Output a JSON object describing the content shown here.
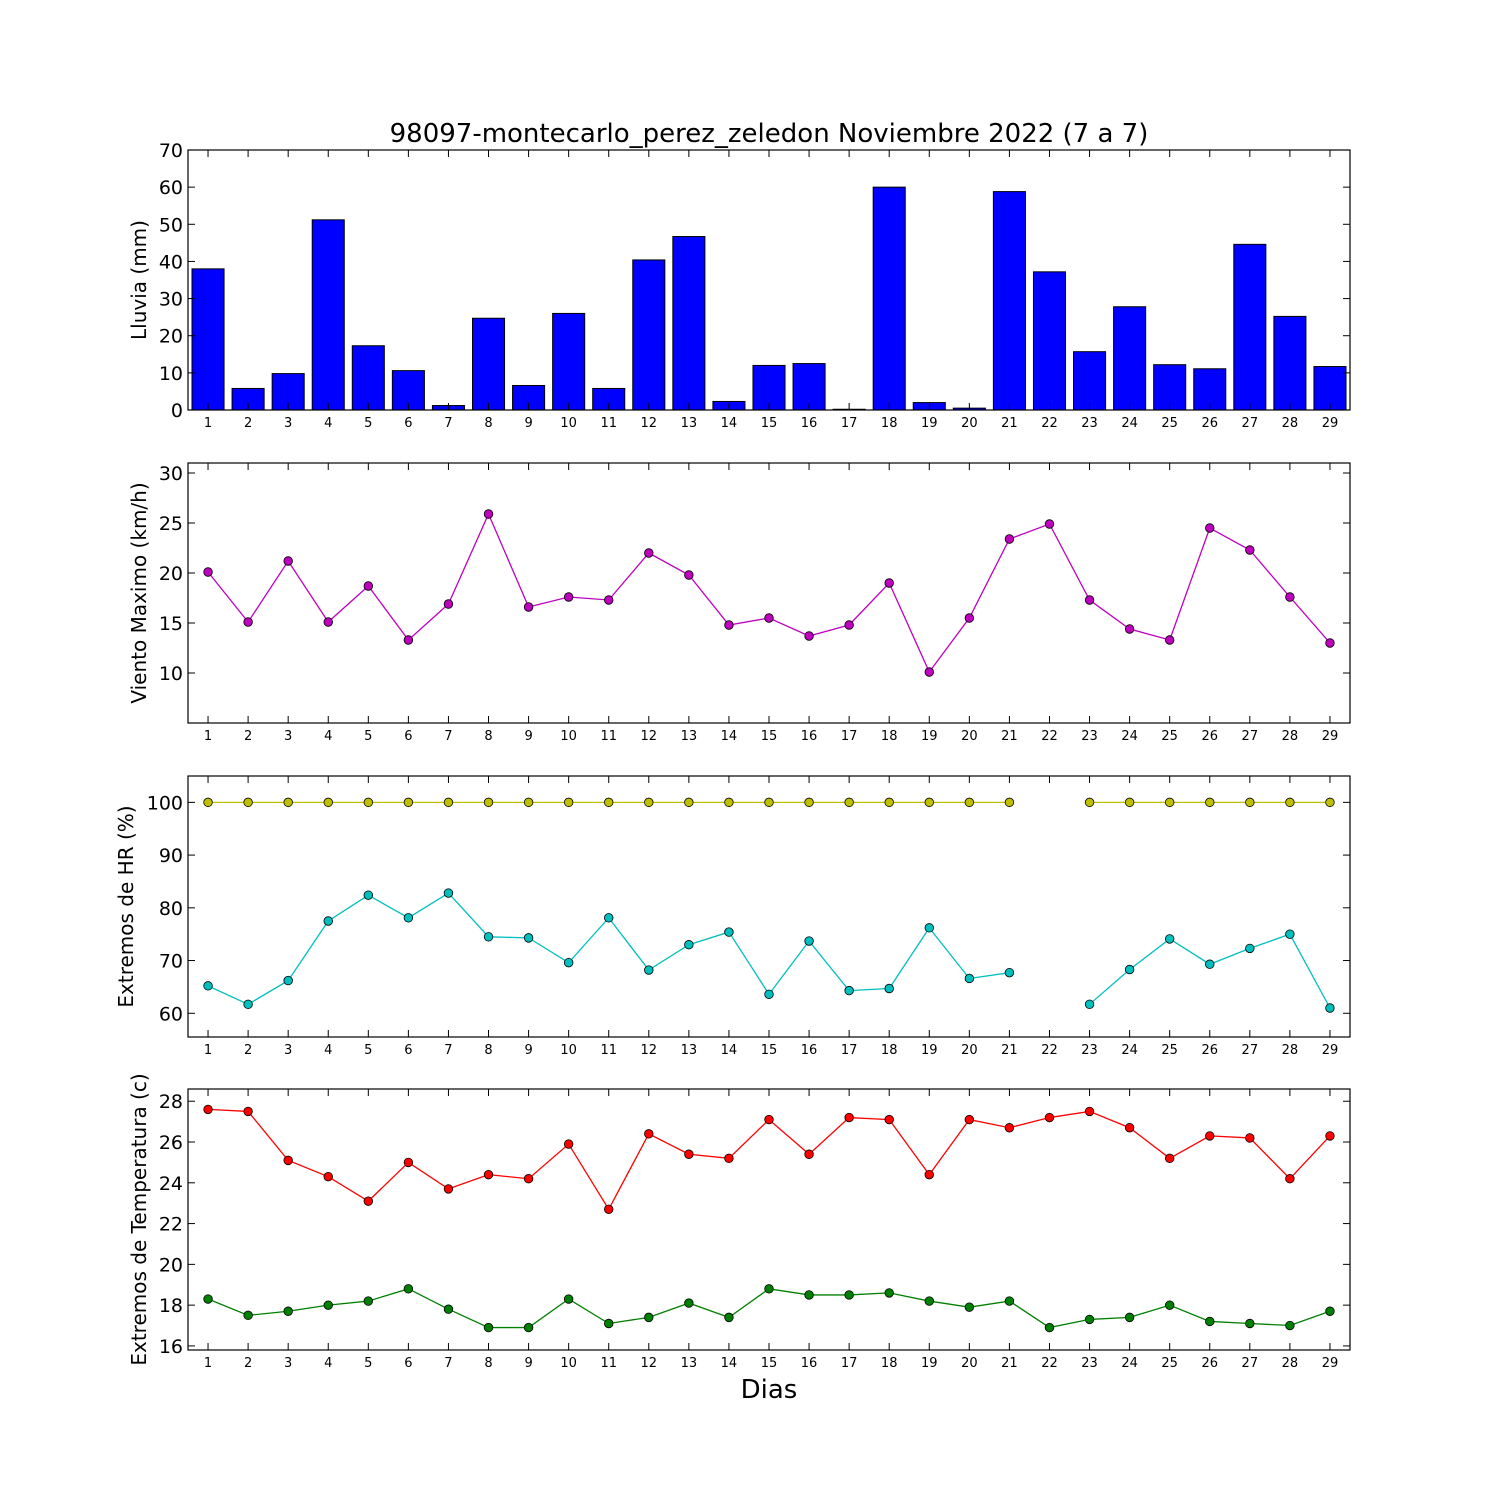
{
  "figure": {
    "title": "98097-montecarlo_perez_zeledon Noviembre 2022  (7 a 7)",
    "xlabel": "Dias"
  },
  "chart_data": [
    {
      "type": "bar",
      "ylabel": "Lluvia (mm)",
      "ylim": [
        0,
        70
      ],
      "yticks": [
        0,
        10,
        20,
        30,
        40,
        50,
        60,
        70
      ],
      "categories": [
        1,
        2,
        3,
        4,
        5,
        6,
        7,
        8,
        9,
        10,
        11,
        12,
        13,
        14,
        15,
        16,
        17,
        18,
        19,
        20,
        21,
        22,
        23,
        24,
        25,
        26,
        27,
        28,
        29
      ],
      "series": [
        {
          "color": "#0000ff",
          "values": [
            38.0,
            5.8,
            9.8,
            51.2,
            17.3,
            10.6,
            1.2,
            24.7,
            6.6,
            26.0,
            5.8,
            40.4,
            46.7,
            2.3,
            12.0,
            12.5,
            0.2,
            60.0,
            2.0,
            0.5,
            58.8,
            37.2,
            15.7,
            27.8,
            12.2,
            11.1,
            44.6,
            25.2,
            11.7
          ]
        }
      ],
      "grid": false
    },
    {
      "type": "line",
      "ylabel": "Viento Maximo (km/h)",
      "ylim": [
        5,
        31
      ],
      "yticks": [
        10,
        15,
        20,
        25,
        30
      ],
      "x": [
        1,
        2,
        3,
        4,
        5,
        6,
        7,
        8,
        9,
        10,
        11,
        12,
        13,
        14,
        15,
        16,
        17,
        18,
        19,
        20,
        21,
        22,
        23,
        24,
        25,
        26,
        27,
        28,
        29
      ],
      "series": [
        {
          "color": "#bf00bf",
          "values": [
            20.1,
            15.1,
            21.2,
            15.1,
            18.7,
            13.3,
            16.9,
            25.9,
            16.6,
            17.6,
            17.3,
            22.0,
            19.8,
            14.8,
            15.5,
            13.7,
            14.8,
            19.0,
            10.1,
            15.5,
            23.4,
            24.9,
            17.3,
            14.4,
            13.3,
            24.5,
            22.3,
            17.6,
            13.0
          ]
        }
      ],
      "grid": false
    },
    {
      "type": "line",
      "ylabel": "Extremos de HR (%)",
      "ylim": [
        55.5,
        105
      ],
      "yticks": [
        60,
        70,
        80,
        90,
        100
      ],
      "x": [
        1,
        2,
        3,
        4,
        5,
        6,
        7,
        8,
        9,
        10,
        11,
        12,
        13,
        14,
        15,
        16,
        17,
        18,
        19,
        20,
        21,
        22,
        23,
        24,
        25,
        26,
        27,
        28,
        29
      ],
      "series": [
        {
          "color": "#bfbf00",
          "values": [
            100,
            100,
            100,
            100,
            100,
            100,
            100,
            100,
            100,
            100,
            100,
            100,
            100,
            100,
            100,
            100,
            100,
            100,
            100,
            100,
            100,
            null,
            100,
            100,
            100,
            100,
            100,
            100,
            100
          ]
        },
        {
          "color": "#00bfbf",
          "values": [
            65.2,
            61.7,
            66.2,
            77.5,
            82.4,
            78.1,
            82.8,
            74.5,
            74.3,
            69.6,
            78.1,
            68.2,
            73.0,
            75.4,
            63.6,
            73.7,
            64.3,
            64.7,
            76.2,
            66.6,
            67.7,
            null,
            61.7,
            68.3,
            74.1,
            69.3,
            72.3,
            75.0,
            61.0
          ]
        }
      ],
      "grid": false
    },
    {
      "type": "line",
      "ylabel": "Extremos de Temperatura (c)",
      "ylim": [
        15.8,
        28.6
      ],
      "yticks": [
        16,
        18,
        20,
        22,
        24,
        26,
        28
      ],
      "x": [
        1,
        2,
        3,
        4,
        5,
        6,
        7,
        8,
        9,
        10,
        11,
        12,
        13,
        14,
        15,
        16,
        17,
        18,
        19,
        20,
        21,
        22,
        23,
        24,
        25,
        26,
        27,
        28,
        29
      ],
      "series": [
        {
          "color": "#ff0000",
          "values": [
            27.6,
            27.5,
            25.1,
            24.3,
            23.1,
            25.0,
            23.7,
            24.4,
            24.2,
            25.9,
            22.7,
            26.4,
            25.4,
            25.2,
            27.1,
            25.4,
            27.2,
            27.1,
            24.4,
            27.1,
            26.7,
            27.2,
            27.5,
            26.7,
            25.2,
            26.3,
            26.2,
            24.2,
            26.3
          ]
        },
        {
          "color": "#008000",
          "values": [
            18.3,
            17.5,
            17.7,
            18.0,
            18.2,
            18.8,
            17.8,
            16.9,
            16.9,
            18.3,
            17.1,
            17.4,
            18.1,
            17.4,
            18.8,
            18.5,
            18.5,
            18.6,
            18.2,
            17.9,
            18.2,
            16.9,
            17.3,
            17.4,
            18.0,
            17.2,
            17.1,
            17.0,
            17.7
          ]
        }
      ],
      "grid": false
    }
  ]
}
